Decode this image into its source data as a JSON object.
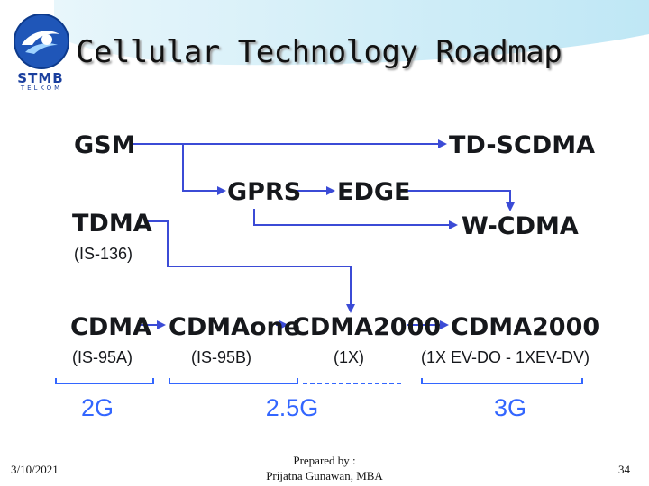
{
  "slide": {
    "title": "Cellular Technology Roadmap",
    "logo": {
      "name": "STMB",
      "sub": "TELKOM"
    }
  },
  "diagram": {
    "nodes": {
      "gsm": "GSM",
      "td_scdma": "TD-SCDMA",
      "gprs": "GPRS",
      "edge": "EDGE",
      "tdma": "TDMA",
      "tdma_sub": "(IS-136)",
      "wcdma": "W-CDMA",
      "cdma": "CDMA",
      "cdma_sub": "(IS-95A)",
      "cdmaone": "CDMAone",
      "cdmaone_sub": "(IS-95B)",
      "cdma2000_1x": "CDMA2000",
      "cdma2000_1x_sub": "(1X)",
      "cdma2000_ev": "CDMA2000",
      "cdma2000_ev_sub": "(1X EV-DO - 1XEV-DV)"
    },
    "generations": [
      "2G",
      "2.5G",
      "3G"
    ],
    "colors": {
      "arrow": "#3b4bd6",
      "bracket": "#3366ff",
      "text": "#16181c"
    }
  },
  "footer": {
    "date": "3/10/2021",
    "prepared_label": "Prepared by :",
    "author": "Prijatna Gunawan, MBA",
    "page": "34"
  }
}
